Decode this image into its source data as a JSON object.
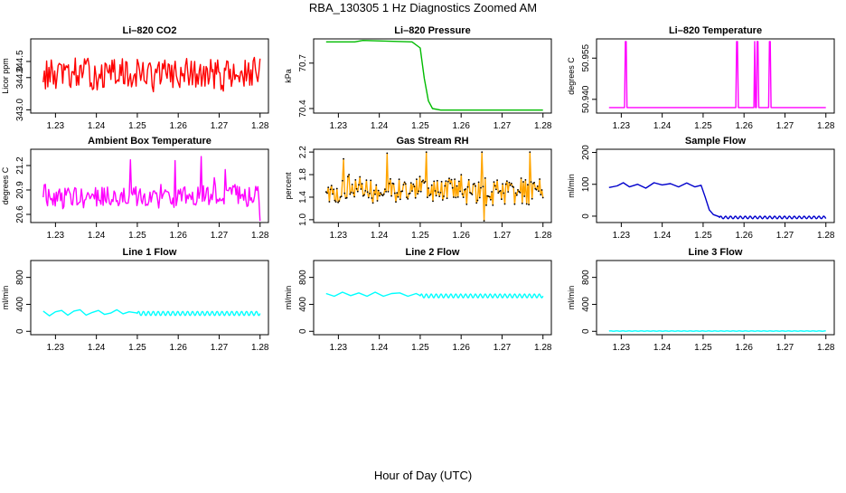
{
  "figure": {
    "title": "RBA_130305  1 Hz Diagnostics Zoomed AM",
    "xlabel": "Hour of Day (UTC)"
  },
  "chart_data": [
    {
      "id": "co2",
      "type": "line",
      "title": "Li–820 CO2",
      "ylabel": "Licor ppm",
      "color": "#ff0000",
      "xlim": [
        1.2255,
        1.2805
      ],
      "xticks": [
        "1.23",
        "1.24",
        "1.25",
        "1.26",
        "1.27",
        "1.28"
      ],
      "ylim": [
        342.9,
        345.2
      ],
      "yticks": [
        "343.0",
        "344.0",
        "344.5"
      ],
      "series": [
        {
          "name": "CO2",
          "x_range": [
            1.227,
            1.28
          ],
          "mode": "noise",
          "base": 344.1,
          "amp": 0.45,
          "min": 343.1,
          "max": 345.0,
          "n": 190
        }
      ]
    },
    {
      "id": "pressure",
      "type": "line",
      "title": "Li–820 Pressure",
      "ylabel": "kPa",
      "color": "#00bb00",
      "xlim": [
        1.2255,
        1.2805
      ],
      "xticks": [
        "1.23",
        "1.24",
        "1.25",
        "1.26",
        "1.27",
        "1.28"
      ],
      "ylim": [
        70.37,
        70.86
      ],
      "yticks": [
        "70.4",
        "70.7"
      ],
      "series": [
        {
          "name": "Pressure",
          "x": [
            1.227,
            1.234,
            1.236,
            1.248,
            1.25,
            1.251,
            1.252,
            1.253,
            1.255,
            1.28
          ],
          "y": [
            70.84,
            70.84,
            70.85,
            70.84,
            70.8,
            70.6,
            70.45,
            70.4,
            70.39,
            70.39
          ]
        }
      ]
    },
    {
      "id": "temperature",
      "type": "line",
      "title": "Li–820 Temperature",
      "ylabel": "degrees C",
      "color": "#ff00ff",
      "xlim": [
        1.2255,
        1.2805
      ],
      "xticks": [
        "1.23",
        "1.24",
        "1.25",
        "1.26",
        "1.27",
        "1.28"
      ],
      "ylim": [
        50.935,
        50.962
      ],
      "yticks": [
        "50.940",
        "50.955"
      ],
      "series": [
        {
          "name": "Temperature",
          "x": [
            1.227,
            1.2308,
            1.231,
            1.2312,
            1.2314,
            1.2316,
            1.258,
            1.2582,
            1.2584,
            1.2586,
            1.2624,
            1.2626,
            1.2628,
            1.263,
            1.2632,
            1.2634,
            1.2636,
            1.266,
            1.2662,
            1.2664,
            1.2666,
            1.2668,
            1.28
          ],
          "y": [
            50.937,
            50.937,
            50.961,
            50.961,
            50.937,
            50.937,
            50.937,
            50.961,
            50.961,
            50.937,
            50.937,
            50.961,
            50.937,
            50.937,
            50.961,
            50.961,
            50.937,
            50.937,
            50.961,
            50.961,
            50.937,
            50.937,
            50.937
          ]
        }
      ]
    },
    {
      "id": "box-temp",
      "type": "line",
      "title": "Ambient Box Temperature",
      "ylabel": "degrees C",
      "color": "#ff00ff",
      "xlim": [
        1.2255,
        1.2805
      ],
      "xticks": [
        "1.23",
        "1.24",
        "1.25",
        "1.26",
        "1.27",
        "1.28"
      ],
      "ylim": [
        20.5,
        21.4
      ],
      "yticks": [
        "20.6",
        "20.9",
        "21.2"
      ],
      "series": [
        {
          "name": "BoxTemp",
          "x_range": [
            1.227,
            1.28
          ],
          "mode": "noise",
          "base": 20.82,
          "amp": 0.12,
          "min": 20.55,
          "max": 21.3,
          "n": 200,
          "spikes": [
            [
              0.4,
              21.27
            ],
            [
              0.61,
              21.26
            ],
            [
              0.73,
              21.31
            ],
            [
              0.79,
              21.05
            ],
            [
              0.84,
              21.15
            ],
            [
              0.999,
              20.52
            ]
          ]
        }
      ]
    },
    {
      "id": "rh",
      "type": "line",
      "title": "Gas Stream RH",
      "ylabel": "percent",
      "color": "#ffa500",
      "dots": true,
      "xlim": [
        1.2255,
        1.2805
      ],
      "xticks": [
        "1.23",
        "1.24",
        "1.25",
        "1.26",
        "1.27",
        "1.28"
      ],
      "ylim": [
        0.95,
        2.25
      ],
      "yticks": [
        "1.0",
        "1.4",
        "1.8",
        "2.2"
      ],
      "series": [
        {
          "name": "RH",
          "x_range": [
            1.227,
            1.28
          ],
          "mode": "noise",
          "base": 1.52,
          "amp": 0.22,
          "min": 1.0,
          "max": 2.2,
          "n": 200,
          "spikes": [
            [
              0.08,
              2.08
            ],
            [
              0.28,
              2.18
            ],
            [
              0.46,
              2.2
            ],
            [
              0.72,
              2.2
            ],
            [
              0.94,
              2.2
            ],
            [
              0.73,
              0.98
            ]
          ]
        }
      ]
    },
    {
      "id": "sample-flow",
      "type": "line",
      "title": "Sample Flow",
      "ylabel": "ml/min",
      "color": "#0000cc",
      "xlim": [
        1.2255,
        1.2805
      ],
      "xticks": [
        "1.23",
        "1.24",
        "1.25",
        "1.26",
        "1.27",
        "1.28"
      ],
      "ylim": [
        -20,
        210
      ],
      "yticks": [
        "0",
        "100",
        "200"
      ],
      "series": [
        {
          "name": "SampleFlow",
          "x": [
            1.227,
            1.229,
            1.2305,
            1.232,
            1.234,
            1.236,
            1.238,
            1.24,
            1.242,
            1.244,
            1.246,
            1.248,
            1.2495,
            1.2505,
            1.2515,
            1.2525,
            1.254
          ],
          "y": [
            90,
            95,
            105,
            92,
            100,
            88,
            105,
            98,
            102,
            92,
            104,
            92,
            97,
            60,
            20,
            5,
            -2
          ],
          "tail": {
            "from": 1.254,
            "to": 1.28,
            "base": -4,
            "amp": 4,
            "period": 0.0012
          }
        }
      ]
    },
    {
      "id": "line1-flow",
      "type": "line",
      "title": "Line 1 Flow",
      "ylabel": "ml/min",
      "color": "#00ffff",
      "xlim": [
        1.2255,
        1.2805
      ],
      "xticks": [
        "1.23",
        "1.24",
        "1.25",
        "1.26",
        "1.27",
        "1.28"
      ],
      "ylim": [
        -50,
        1050
      ],
      "yticks": [
        "0",
        "400",
        "800"
      ],
      "series": [
        {
          "name": "Line1",
          "x": [
            1.227,
            1.2285,
            1.23,
            1.2315,
            1.233,
            1.2345,
            1.236,
            1.2375,
            1.239,
            1.2405,
            1.242,
            1.2435,
            1.245,
            1.2465,
            1.248,
            1.25
          ],
          "y": [
            300,
            230,
            290,
            310,
            240,
            300,
            320,
            240,
            280,
            310,
            250,
            270,
            320,
            260,
            290,
            270
          ],
          "tail": {
            "from": 1.25,
            "to": 1.28,
            "base": 265,
            "amp": 30,
            "period": 0.0012
          }
        }
      ]
    },
    {
      "id": "line2-flow",
      "type": "line",
      "title": "Line 2 Flow",
      "ylabel": "ml/min",
      "color": "#00ffff",
      "xlim": [
        1.2255,
        1.2805
      ],
      "xticks": [
        "1.23",
        "1.24",
        "1.25",
        "1.26",
        "1.27",
        "1.28"
      ],
      "ylim": [
        -50,
        1050
      ],
      "yticks": [
        "0",
        "400",
        "800"
      ],
      "series": [
        {
          "name": "Line2",
          "x": [
            1.227,
            1.229,
            1.231,
            1.233,
            1.235,
            1.237,
            1.239,
            1.241,
            1.243,
            1.245,
            1.247,
            1.249,
            1.25
          ],
          "y": [
            560,
            520,
            580,
            530,
            570,
            520,
            580,
            520,
            560,
            570,
            520,
            560,
            530
          ],
          "tail": {
            "from": 1.25,
            "to": 1.28,
            "base": 525,
            "amp": 28,
            "period": 0.0012
          }
        }
      ]
    },
    {
      "id": "line3-flow",
      "type": "line",
      "title": "Line 3 Flow",
      "ylabel": "ml/min",
      "color": "#00ffff",
      "xlim": [
        1.2255,
        1.2805
      ],
      "xticks": [
        "1.23",
        "1.24",
        "1.25",
        "1.26",
        "1.27",
        "1.28"
      ],
      "ylim": [
        -50,
        1050
      ],
      "yticks": [
        "0",
        "400",
        "800"
      ],
      "series": [
        {
          "name": "Line3",
          "x": [
            1.227,
            1.28
          ],
          "y": [
            5,
            5
          ],
          "tail": {
            "from": 1.227,
            "to": 1.28,
            "base": 4,
            "amp": 3,
            "period": 0.0015
          }
        }
      ]
    }
  ]
}
